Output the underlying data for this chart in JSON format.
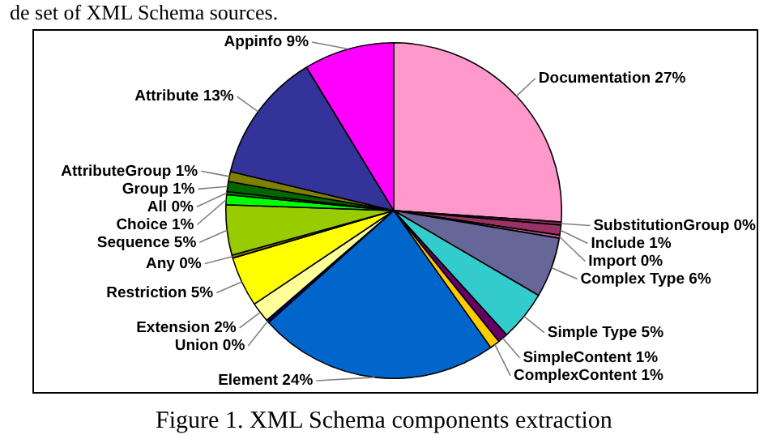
{
  "chart_data": {
    "type": "pie",
    "categories": [
      "Documentation",
      "SubstitutionGroup",
      "Include",
      "Import",
      "Complex Type",
      "Simple Type",
      "SimpleContent",
      "ComplexContent",
      "Element",
      "Union",
      "Extension",
      "Restriction",
      "Any",
      "Sequence",
      "Choice",
      "All",
      "Group",
      "AttributeGroup",
      "Attribute",
      "Appinfo"
    ],
    "values": [
      27,
      0.3,
      1,
      0.3,
      6,
      5,
      1,
      1,
      24,
      0.3,
      2,
      5,
      0.3,
      5,
      1,
      0.3,
      1,
      1,
      13,
      9
    ],
    "value_labels": [
      "27%",
      "0%",
      "1%",
      "0%",
      "6%",
      "5%",
      "1%",
      "1%",
      "24%",
      "0%",
      "2%",
      "5%",
      "0%",
      "5%",
      "1%",
      "0%",
      "1%",
      "1%",
      "13%",
      "9%"
    ],
    "colors": [
      "#ff99cc",
      "#993366",
      "#993366",
      "#cc6699",
      "#666699",
      "#33cccc",
      "#660066",
      "#ffcc00",
      "#0066cc",
      "#000080",
      "#ffff99",
      "#ffff00",
      "#808000",
      "#99cc00",
      "#00ff00",
      "#008000",
      "#006600",
      "#808000",
      "#333399",
      "#ff00ff"
    ],
    "legend": false,
    "annotations": [
      "de set of XML Schema sources.",
      "Figure 1.   XML Schema components extraction"
    ]
  }
}
